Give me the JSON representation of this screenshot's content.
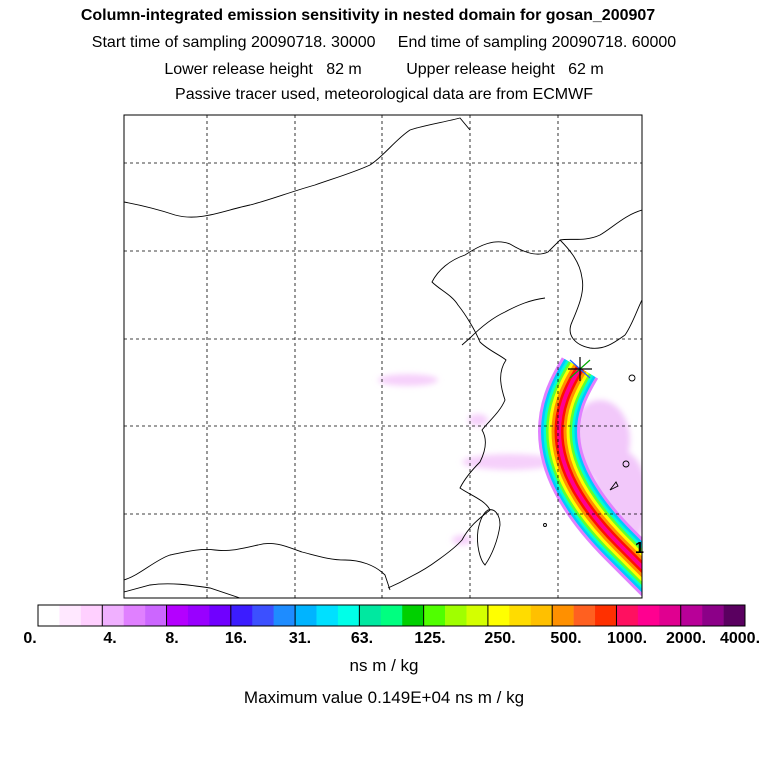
{
  "header": {
    "title": "Column-integrated emission sensitivity in nested domain for gosan_200907",
    "sampling_start": "Start time of sampling 20090718. 30000",
    "sampling_end": "End time of sampling 20090718. 60000",
    "lower_release": "Lower release height   82 m",
    "upper_release": "Upper release height   62 m",
    "tracer_info": "Passive tracer used, meteorological data are from ECMWF"
  },
  "map": {
    "plume_label": "1",
    "receptor_marker": "gosan-receptor"
  },
  "colorbar": {
    "colors": [
      "#ffffff",
      "#ffe8ff",
      "#ffd0ff",
      "#f0b0ff",
      "#e080ff",
      "#cc66ff",
      "#b400ff",
      "#9900ff",
      "#7000ff",
      "#3c1cff",
      "#3c50ff",
      "#1e8cff",
      "#00b4ff",
      "#00e0ff",
      "#00ffe8",
      "#00e8a0",
      "#00ff80",
      "#00d000",
      "#50ff00",
      "#a0ff00",
      "#d4ff00",
      "#ffff00",
      "#ffdc00",
      "#ffc000",
      "#ff9000",
      "#ff6020",
      "#ff3000",
      "#ff1060",
      "#ff0090",
      "#e00090",
      "#b80098",
      "#8c0088",
      "#5a0060"
    ],
    "tick_labels": [
      "0.",
      "4.",
      "8.",
      "16.",
      "31.",
      "63.",
      "125.",
      "250.",
      "500.",
      "1000.",
      "2000.",
      "4000."
    ],
    "units": "ns m / kg"
  },
  "max_value": "Maximum value  0.149E+04 ns m / kg"
}
